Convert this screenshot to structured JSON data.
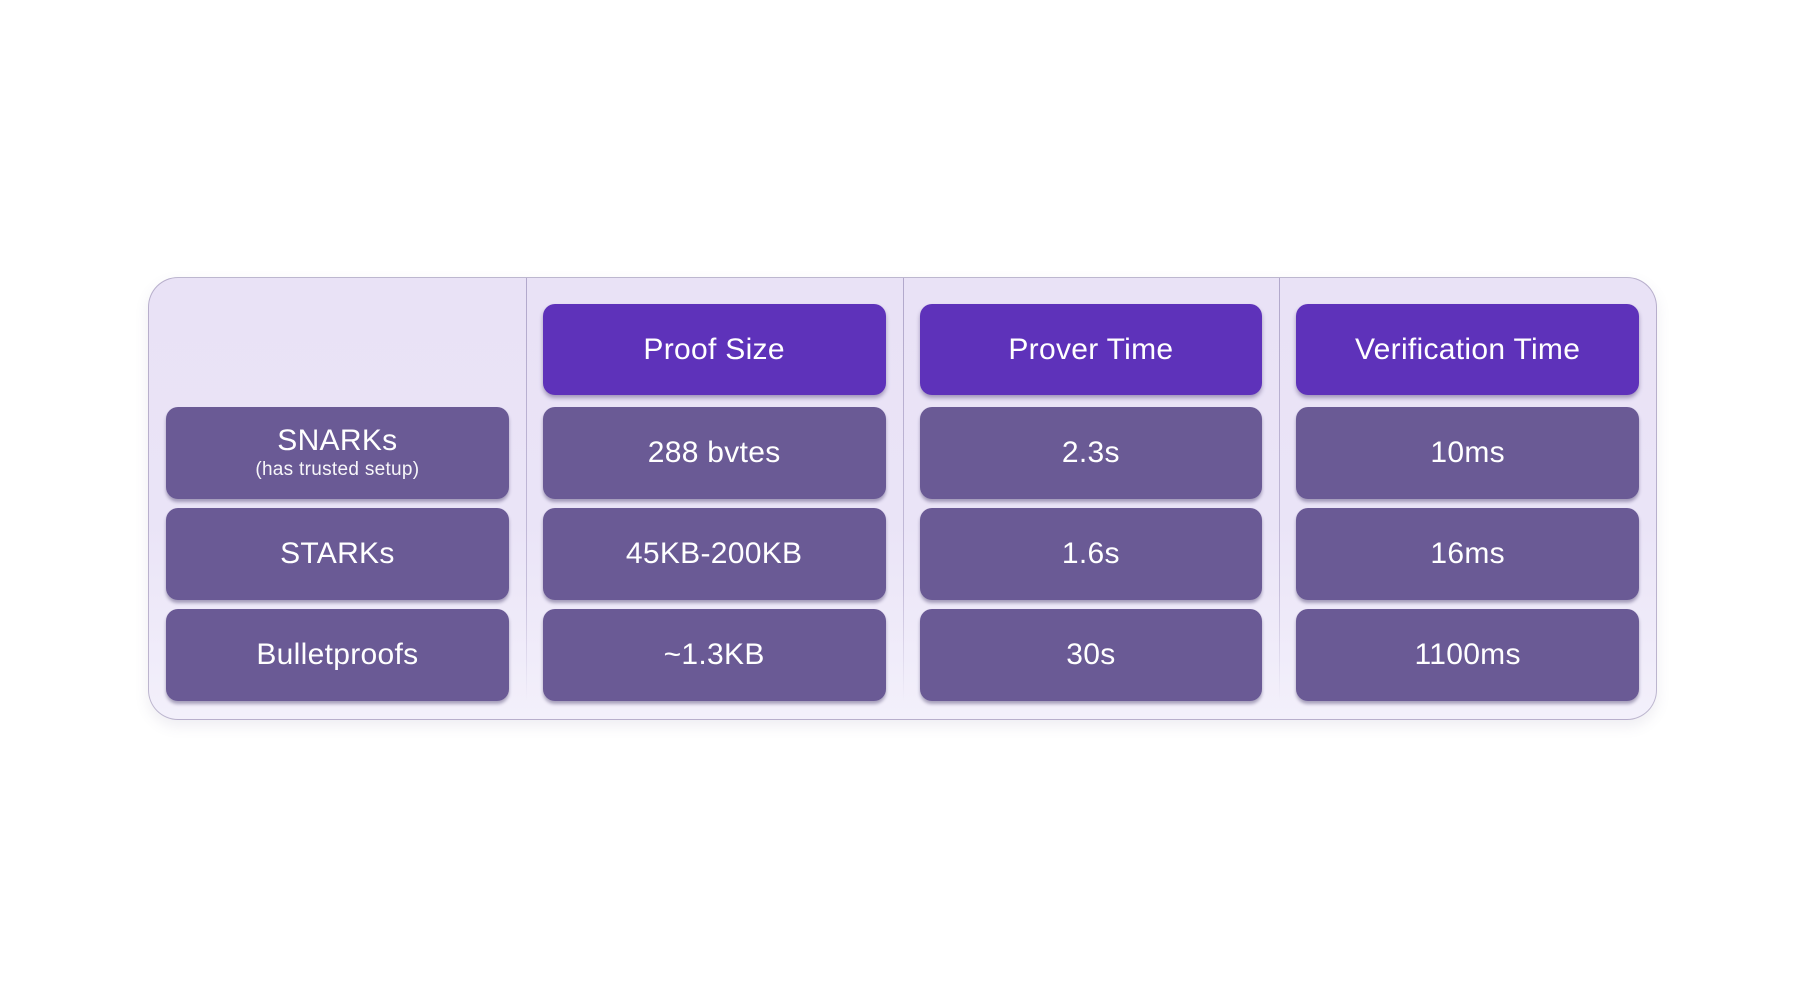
{
  "table": {
    "columns": [
      {
        "key": "proof_size",
        "label": "Proof Size"
      },
      {
        "key": "prover_time",
        "label": "Prover Time"
      },
      {
        "key": "verification_time",
        "label": "Verification Time"
      }
    ],
    "rows": [
      {
        "label": "SNARKs",
        "sublabel": "(has trusted setup)",
        "proof_size": "288 bvtes",
        "prover_time": "2.3s",
        "verification_time": "10ms"
      },
      {
        "label": "STARKs",
        "sublabel": "",
        "proof_size": "45KB-200KB",
        "prover_time": "1.6s",
        "verification_time": "16ms"
      },
      {
        "label": "Bulletproofs",
        "sublabel": "",
        "proof_size": "~1.3KB",
        "prover_time": "30s",
        "verification_time": "1100ms"
      }
    ]
  },
  "chart_data": {
    "type": "table",
    "title": "",
    "columns": [
      "",
      "Proof Size",
      "Prover Time",
      "Verification Time"
    ],
    "rows": [
      [
        "SNARKs (has trusted setup)",
        "288 bvtes",
        "2.3s",
        "10ms"
      ],
      [
        "STARKs",
        "45KB-200KB",
        "1.6s",
        "16ms"
      ],
      [
        "Bulletproofs",
        "~1.3KB",
        "30s",
        "1100ms"
      ]
    ]
  },
  "colors": {
    "page_bg": "#ffffff",
    "panel_bg": "#eae4f7",
    "header_cell_bg": "#5e32ba",
    "data_cell_bg": "#6a5a95",
    "divider": "#b4abcd",
    "text": "#ffffff"
  }
}
